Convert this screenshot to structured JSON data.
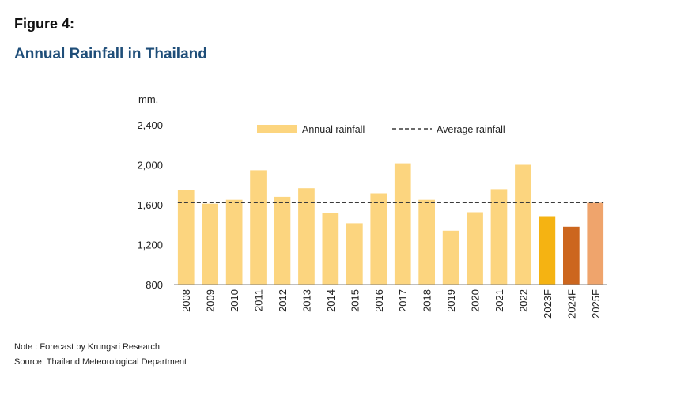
{
  "figure_label": "Figure 4:",
  "title": "Annual Rainfall in Thailand",
  "notes": {
    "note": "Note : Forecast by Krungsri Research",
    "source": "Source: Thailand Meteorological Department"
  },
  "chart_data": {
    "type": "bar",
    "unit_label": "mm.",
    "categories": [
      "2008",
      "2009",
      "2010",
      "2011",
      "2012",
      "2013",
      "2014",
      "2015",
      "2016",
      "2017",
      "2018",
      "2019",
      "2020",
      "2021",
      "2022",
      "2023F",
      "2024F",
      "2025F"
    ],
    "series": [
      {
        "name": "Annual rainfall",
        "values": [
          1750,
          1610,
          1650,
          1945,
          1680,
          1765,
          1520,
          1415,
          1715,
          2015,
          1650,
          1340,
          1525,
          1755,
          2000,
          1485,
          1380,
          1620
        ]
      },
      {
        "name": "Average rainfall",
        "type": "line",
        "value": 1622
      }
    ],
    "bar_colors": [
      "#FCD57F",
      "#FCD57F",
      "#FCD57F",
      "#FCD57F",
      "#FCD57F",
      "#FCD57F",
      "#FCD57F",
      "#FCD57F",
      "#FCD57F",
      "#FCD57F",
      "#FCD57F",
      "#FCD57F",
      "#FCD57F",
      "#FCD57F",
      "#FCD57F",
      "#F5B312",
      "#CC661E",
      "#EFA46C"
    ],
    "average_color": "#3a3a3a",
    "yticks": [
      "2,400",
      "2,000",
      "1,600",
      "1,200",
      "800"
    ],
    "ytick_values": [
      2400,
      2000,
      1600,
      1200,
      800
    ],
    "ylim": [
      800,
      2400
    ],
    "legend_position": "top",
    "grid": false
  }
}
